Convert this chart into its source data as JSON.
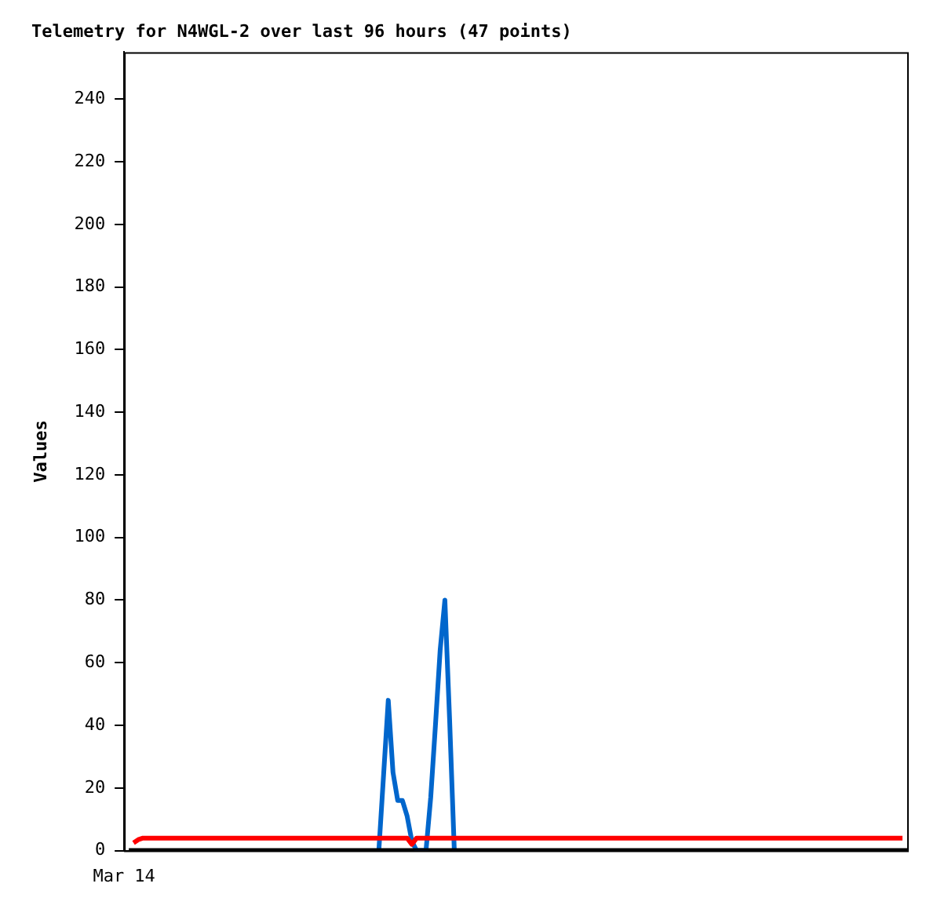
{
  "chart_data": {
    "type": "line",
    "title": "Telemetry for N4WGL-2 over last 96 hours (47 points)",
    "ylabel": "Values",
    "categories": [
      "Mar 14",
      null,
      null,
      null,
      null,
      null,
      null,
      null,
      null,
      null,
      null,
      null,
      null,
      null,
      null,
      null,
      null,
      null,
      null,
      null,
      null,
      null,
      null,
      null,
      null,
      null,
      null,
      null,
      null,
      null,
      null,
      null,
      null,
      null,
      null,
      null,
      null,
      null,
      null,
      null,
      null,
      null,
      null,
      null,
      null,
      null,
      null,
      null,
      null,
      null,
      null,
      null,
      null,
      null,
      null,
      null,
      null,
      null,
      null,
      null,
      null,
      null,
      null,
      null,
      null,
      null,
      null,
      null,
      null,
      null,
      null,
      null,
      null,
      null,
      null,
      null,
      null,
      null,
      null,
      null,
      null,
      null,
      null,
      null,
      null,
      null,
      null,
      null,
      null,
      null,
      null,
      null,
      null,
      null,
      null,
      null,
      null,
      null,
      null,
      null,
      null,
      null,
      null,
      null,
      null,
      null,
      null,
      null,
      null,
      null,
      null,
      null,
      null,
      null,
      null,
      null,
      null,
      null,
      null,
      null,
      null,
      null,
      null,
      null,
      null,
      null,
      null,
      null,
      null,
      null,
      null,
      null,
      null,
      null,
      null,
      null,
      null,
      null,
      null,
      null,
      null,
      null,
      null,
      null,
      null,
      null,
      null,
      null,
      null,
      null,
      null,
      null,
      null,
      null,
      null,
      null,
      null,
      null,
      null,
      null,
      null,
      null,
      null,
      null,
      null,
      null,
      null
    ],
    "ylim": [
      0,
      255
    ],
    "yticks": [
      0,
      20,
      40,
      60,
      80,
      100,
      120,
      140,
      160,
      180,
      200,
      220,
      240
    ],
    "grid": false,
    "legend": false,
    "marker": "none",
    "line_style": "solid",
    "series": [
      {
        "color": "#000000",
        "values": [
          null,
          0,
          0,
          0,
          0,
          0,
          0,
          0,
          0,
          0,
          0,
          0,
          0,
          0,
          0,
          0,
          0,
          0,
          0,
          0,
          0,
          0,
          0,
          0,
          0,
          0,
          0,
          0,
          0,
          0,
          0,
          0,
          0,
          0,
          0,
          0,
          0,
          0,
          0,
          0,
          0,
          0,
          0,
          0,
          0,
          0,
          0,
          0,
          0,
          0,
          0,
          0,
          0,
          0,
          0,
          0,
          0,
          0,
          0,
          0,
          0,
          0,
          0,
          0,
          0,
          0,
          0,
          0,
          0,
          0,
          0,
          0,
          0,
          0,
          0,
          0,
          0,
          0,
          0,
          0,
          0,
          0,
          0,
          0,
          0,
          0,
          0,
          0,
          0,
          0,
          0,
          0,
          0,
          0,
          0,
          0,
          0,
          0,
          0,
          0,
          0,
          0,
          0,
          0,
          0,
          0,
          0,
          0,
          0,
          0,
          0,
          0,
          0,
          0,
          0,
          0,
          0,
          0,
          0,
          0,
          0,
          0,
          0,
          0,
          0,
          0,
          0,
          0,
          0,
          0,
          0,
          0,
          0,
          0,
          0,
          0,
          0,
          0,
          0,
          0,
          0,
          0,
          0,
          0,
          0,
          0,
          0,
          0,
          0,
          0,
          0,
          0,
          0,
          0,
          0,
          0,
          0,
          0,
          0,
          0,
          0,
          0,
          0,
          0,
          0,
          0,
          0
        ]
      },
      {
        "color": "#ff0000",
        "values": [
          null,
          null,
          2.5,
          3.5,
          4,
          4,
          4,
          4,
          4,
          4,
          4,
          4,
          4,
          4,
          4,
          4,
          4,
          4,
          4,
          4,
          4,
          4,
          4,
          4,
          4,
          4,
          4,
          4,
          4,
          4,
          4,
          4,
          4,
          4,
          4,
          4,
          4,
          4,
          4,
          4,
          4,
          4,
          4,
          4,
          4,
          4,
          4,
          4,
          4,
          4,
          4,
          4,
          4,
          4,
          4,
          4,
          4,
          4,
          4,
          4,
          4,
          2,
          4,
          4,
          4,
          4,
          4,
          4,
          4,
          4,
          4,
          4,
          4,
          4,
          4,
          4,
          4,
          4,
          4,
          4,
          4,
          4,
          4,
          4,
          4,
          4,
          4,
          4,
          4,
          4,
          4,
          4,
          4,
          4,
          4,
          4,
          4,
          4,
          4,
          4,
          4,
          4,
          4,
          4,
          4,
          4,
          4,
          4,
          4,
          4,
          4,
          4,
          4,
          4,
          4,
          4,
          4,
          4,
          4,
          4,
          4,
          4,
          4,
          4,
          4,
          4,
          4,
          4,
          4,
          4,
          4,
          4,
          4,
          4,
          4,
          4,
          4,
          4,
          4,
          4,
          4,
          4,
          4,
          4,
          4,
          4,
          4,
          4,
          4,
          4,
          4,
          4,
          4,
          4,
          4,
          4,
          4,
          4,
          4,
          4,
          4,
          4,
          4,
          4,
          4,
          4,
          null
        ]
      },
      {
        "color": "#0066cc",
        "values": [
          null,
          null,
          null,
          null,
          null,
          null,
          null,
          null,
          null,
          null,
          null,
          null,
          null,
          null,
          null,
          null,
          null,
          null,
          null,
          null,
          null,
          null,
          null,
          null,
          null,
          null,
          null,
          null,
          null,
          null,
          null,
          null,
          null,
          null,
          null,
          null,
          null,
          null,
          null,
          null,
          null,
          null,
          null,
          null,
          null,
          null,
          null,
          null,
          null,
          null,
          null,
          null,
          null,
          null,
          0,
          24,
          48,
          25,
          16,
          16,
          11,
          3,
          0,
          0,
          0,
          17,
          40,
          64,
          80,
          42,
          0,
          null,
          null,
          null,
          null,
          null,
          null,
          null,
          null,
          null,
          null,
          null,
          null,
          null,
          null,
          null,
          null,
          null,
          null,
          null,
          null,
          null,
          null,
          null,
          null,
          null,
          null,
          null,
          null,
          null,
          null,
          null,
          null,
          null,
          null,
          null,
          null,
          null,
          null,
          null,
          null,
          null,
          null,
          null,
          null,
          null,
          null,
          null,
          null,
          null,
          null,
          null,
          null,
          null,
          null,
          null,
          null,
          null,
          null,
          null,
          null,
          null,
          null,
          null,
          null,
          null,
          null,
          null,
          null,
          null,
          null,
          null,
          null,
          null,
          null,
          null,
          null,
          null,
          null,
          null,
          null,
          null,
          null,
          null,
          null,
          null,
          null,
          null,
          null,
          null,
          null,
          null,
          null,
          null,
          null,
          null,
          null
        ]
      }
    ]
  }
}
